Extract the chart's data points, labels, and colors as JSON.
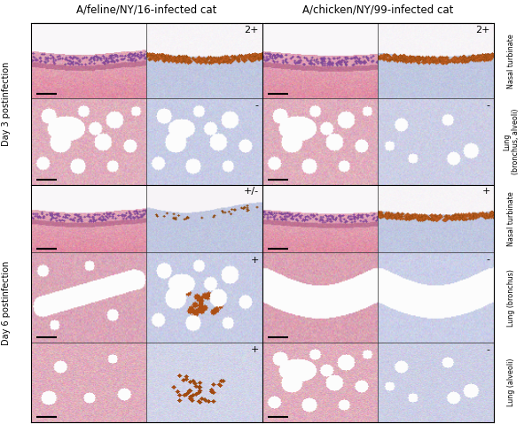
{
  "title_left": "A/feline/NY/16-infected cat",
  "title_right": "A/chicken/NY/99-infected cat",
  "row_labels_left_top": "Day 3 postinfection",
  "row_labels_left_bottom": "Day 6 postinfection",
  "right_labels": [
    "Nasal turbinate",
    "Lung\n(bronchus, alveoli)",
    "Nasal turbinate",
    "Lung (bronchus)",
    "Lung (alveoli)"
  ],
  "scores": {
    "0_1": "2+",
    "0_3": "2+",
    "1_1": "-",
    "1_3": "-",
    "2_1": "+/-",
    "2_3": "+",
    "3_1": "+",
    "3_3": "-",
    "4_1": "+",
    "4_3": "-"
  },
  "bg_color": "#ffffff",
  "label_color": "#000000",
  "title_fontsize": 8.5,
  "score_fontsize": 8,
  "axis_label_fontsize": 6.5,
  "row_label_fontsize": 7
}
